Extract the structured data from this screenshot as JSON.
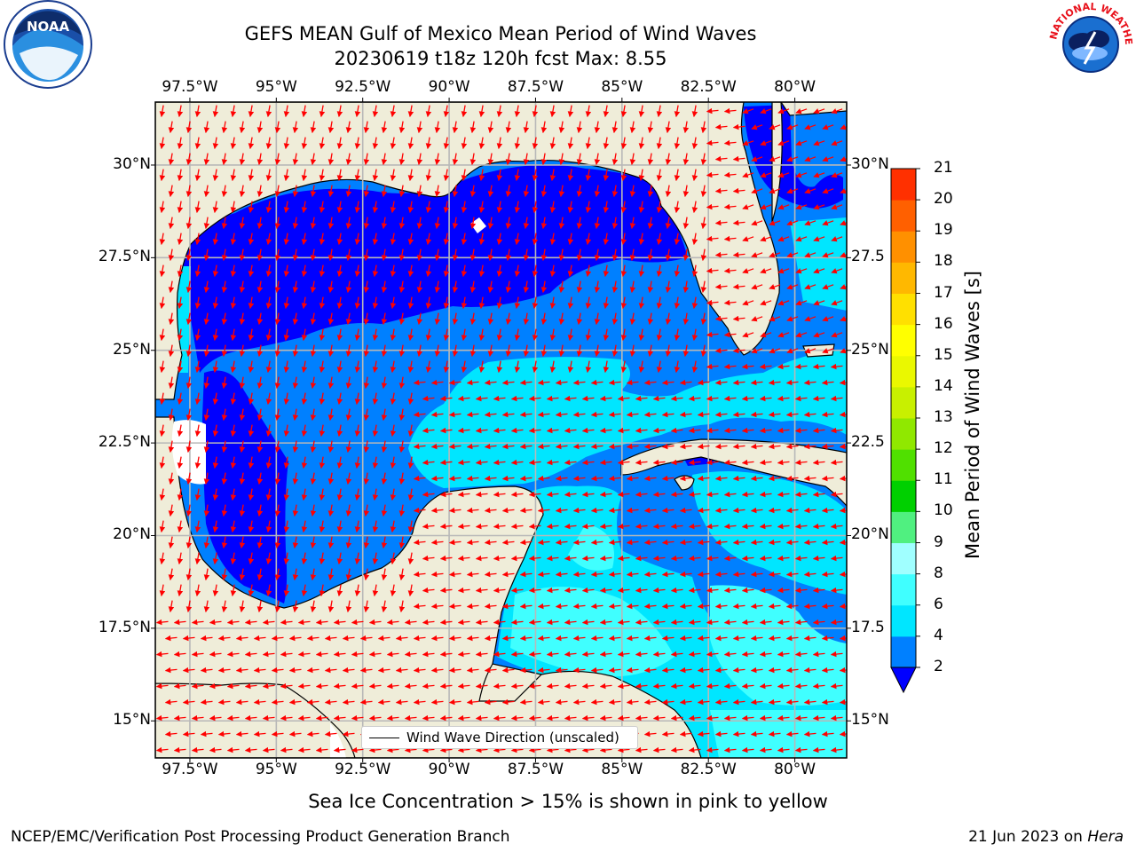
{
  "title": {
    "line1": "GEFS MEAN Gulf of Mexico Mean Period of Wind Waves",
    "line2": "20230619 t18z 120h fcst   Max: 8.55"
  },
  "map": {
    "lon_range": [
      -98.5,
      -78.5
    ],
    "lat_range": [
      14,
      31.7
    ],
    "x_ticks": [
      "97.5°W",
      "95°W",
      "92.5°W",
      "90°W",
      "87.5°W",
      "85°W",
      "82.5°W",
      "80°W"
    ],
    "x_tick_values": [
      -97.5,
      -95,
      -92.5,
      -90,
      -87.5,
      -85,
      -82.5,
      -80
    ],
    "y_ticks_left": [
      "15°N",
      "17.5°N",
      "20°N",
      "22.5°N",
      "25°N",
      "27.5°N",
      "30°N"
    ],
    "y_ticks_right": [
      "15°N",
      "17.5",
      "20°N",
      "22.5",
      "25°N",
      "27.5",
      "30°N"
    ],
    "y_tick_values": [
      15,
      17.5,
      20,
      22.5,
      25,
      27.5,
      30
    ],
    "grid": true,
    "land_color": "#efedd9",
    "arrow_color": "#ff0000"
  },
  "legend": {
    "label": "Wind Wave Direction (unscaled)",
    "placement": "lower-center"
  },
  "colorbar": {
    "label": "Mean Period of Wind Waves [s]",
    "ticks": [
      "2",
      "4",
      "6",
      "8",
      "9",
      "10",
      "11",
      "12",
      "13",
      "14",
      "15",
      "16",
      "17",
      "18",
      "19",
      "20",
      "21"
    ],
    "colors": [
      "#0080ff",
      "#00e6ff",
      "#40ffff",
      "#a0ffff",
      "#50f080",
      "#00d000",
      "#50e000",
      "#90e800",
      "#c8f000",
      "#eaf800",
      "#ffff00",
      "#ffe000",
      "#ffb800",
      "#ff9000",
      "#ff6000",
      "#ff3000",
      "#ff0000"
    ],
    "under_color": "#0000ff"
  },
  "bottom_note": "Sea Ice Concentration > 15% is shown in pink to yellow",
  "footer": {
    "left": "NCEP/EMC/Verification Post Processing Product Generation Branch",
    "right_date": "21 Jun 2023 on ",
    "right_host": "Hera"
  },
  "logos": {
    "noaa": "NOAA",
    "nws": "NATIONAL WEATHER SERVICE"
  }
}
